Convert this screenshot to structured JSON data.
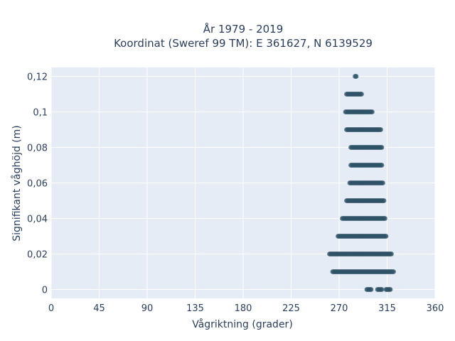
{
  "chart_data": {
    "type": "scatter",
    "title_lines": [
      "År 1979 - 2019",
      "Koordinat (Sweref 99 TM): E 361627, N 6139529"
    ],
    "xlabel": "Vågriktning (grader)",
    "ylabel": "Signifikant våghöjd (m)",
    "xlim": [
      0,
      360
    ],
    "ylim": [
      -0.005,
      0.125
    ],
    "x_ticks": [
      0,
      45,
      90,
      135,
      180,
      225,
      270,
      315,
      360
    ],
    "x_tick_labels": [
      "0",
      "45",
      "90",
      "135",
      "180",
      "225",
      "270",
      "315",
      "360"
    ],
    "y_ticks": [
      0,
      0.02,
      0.04,
      0.06,
      0.08,
      0.1,
      0.12
    ],
    "y_tick_labels": [
      "0",
      "0,02",
      "0,04",
      "0,06",
      "0,08",
      "0,1",
      "0,12"
    ],
    "grid": true,
    "colors": {
      "plot_bg": "#e5ecf6",
      "grid": "#ffffff",
      "marker": "#2d5266",
      "text": "#2a3f5f"
    },
    "bands": [
      {
        "y": 0.0,
        "segments": [
          [
            296,
            300
          ],
          [
            306,
            310
          ],
          [
            314,
            318
          ]
        ]
      },
      {
        "y": 0.01,
        "segments": [
          [
            264,
            321
          ]
        ]
      },
      {
        "y": 0.02,
        "segments": [
          [
            261,
            319
          ]
        ]
      },
      {
        "y": 0.03,
        "segments": [
          [
            269,
            314
          ]
        ]
      },
      {
        "y": 0.04,
        "segments": [
          [
            273,
            313
          ]
        ]
      },
      {
        "y": 0.05,
        "segments": [
          [
            277,
            312
          ]
        ]
      },
      {
        "y": 0.06,
        "segments": [
          [
            280,
            311
          ]
        ]
      },
      {
        "y": 0.07,
        "segments": [
          [
            281,
            310
          ]
        ]
      },
      {
        "y": 0.08,
        "segments": [
          [
            281,
            310
          ]
        ]
      },
      {
        "y": 0.09,
        "segments": [
          [
            277,
            309
          ]
        ]
      },
      {
        "y": 0.1,
        "segments": [
          [
            276,
            301
          ]
        ]
      },
      {
        "y": 0.11,
        "segments": [
          [
            277,
            291
          ]
        ]
      },
      {
        "y": 0.12,
        "segments": [
          [
            285,
            286
          ]
        ]
      }
    ]
  }
}
